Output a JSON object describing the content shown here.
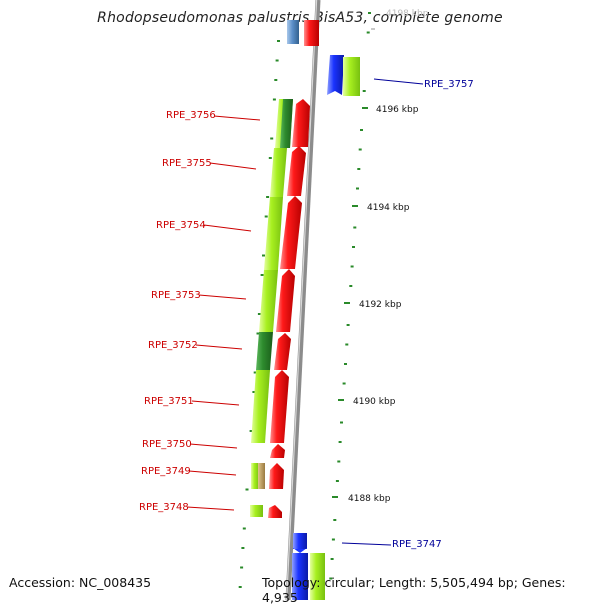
{
  "title": "Rhodopseudomonas palustris BisA53, complete genome",
  "accession": "Accession: NC_008435",
  "topology": "Topology: circular; Length: 5,505,494 bp; Genes: 4,935",
  "scale_labels": [
    "4198 kbp",
    "4196 kbp",
    "4194 kbp",
    "4192 kbp",
    "4190 kbp",
    "4188 kbp"
  ],
  "genes_left": [
    "RPE_3756",
    "RPE_3755",
    "RPE_3754",
    "RPE_3753",
    "RPE_3752",
    "RPE_3751",
    "RPE_3750",
    "RPE_3749",
    "RPE_3748"
  ],
  "genes_right": [
    "RPE_3757",
    "RPE_3747"
  ],
  "colors": {
    "backbone": "#8c8c8c",
    "cds_red": "#ff1010",
    "cds_green": "#a8f020",
    "cds_darkgreen": "#2e8b2e",
    "cds_blue": "#1a33ff",
    "cds_steelblue": "#5b8fc9",
    "label_forward": "#cc0000",
    "label_reverse": "#000099",
    "tick": "#2a8a2a"
  }
}
